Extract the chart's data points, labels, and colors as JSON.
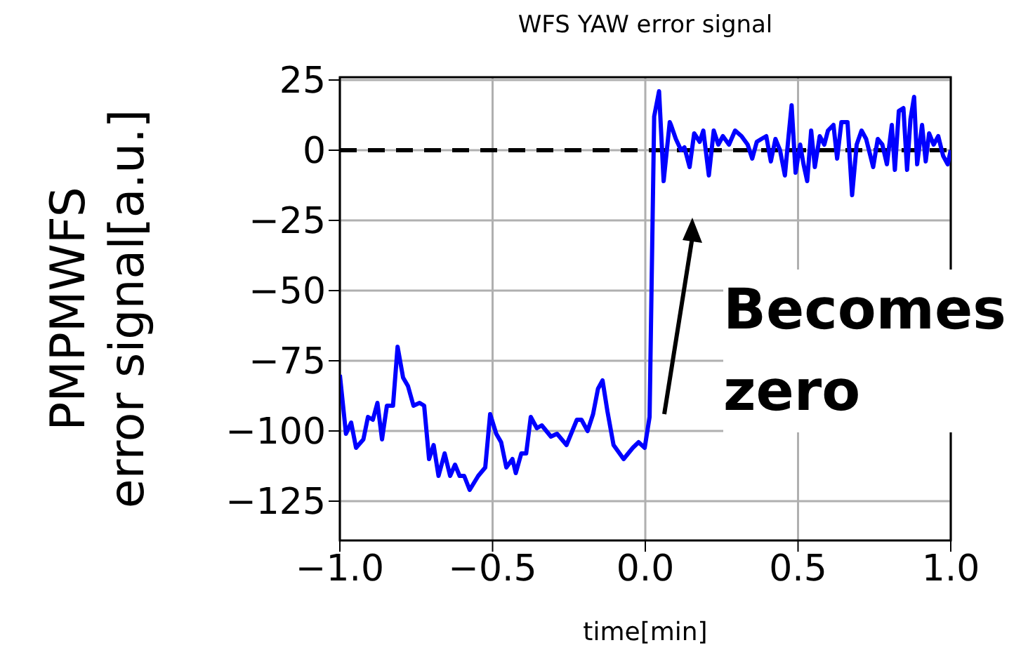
{
  "chart_data": {
    "type": "line",
    "title": "WFS YAW error signal",
    "xlabel": "time[min]",
    "ylabel": "PMPMWFS\nerror signal[a.u.]",
    "x": [
      -1.0,
      -0.98,
      -0.963,
      -0.947,
      -0.923,
      -0.908,
      -0.892,
      -0.877,
      -0.862,
      -0.846,
      -0.826,
      -0.811,
      -0.793,
      -0.777,
      -0.759,
      -0.739,
      -0.724,
      -0.708,
      -0.693,
      -0.677,
      -0.657,
      -0.639,
      -0.623,
      -0.608,
      -0.593,
      -0.575,
      -0.547,
      -0.524,
      -0.508,
      -0.488,
      -0.472,
      -0.455,
      -0.435,
      -0.424,
      -0.406,
      -0.39,
      -0.375,
      -0.355,
      -0.339,
      -0.309,
      -0.289,
      -0.258,
      -0.224,
      -0.209,
      -0.189,
      -0.171,
      -0.155,
      -0.14,
      -0.124,
      -0.104,
      -0.071,
      -0.041,
      -0.022,
      -0.002,
      0.014,
      0.029,
      0.045,
      0.06,
      0.08,
      0.084,
      0.1,
      0.117,
      0.128,
      0.145,
      0.16,
      0.178,
      0.19,
      0.208,
      0.224,
      0.239,
      0.254,
      0.274,
      0.294,
      0.315,
      0.335,
      0.35,
      0.365,
      0.38,
      0.396,
      0.411,
      0.426,
      0.441,
      0.457,
      0.469,
      0.479,
      0.492,
      0.507,
      0.518,
      0.53,
      0.543,
      0.555,
      0.571,
      0.586,
      0.598,
      0.616,
      0.628,
      0.642,
      0.662,
      0.677,
      0.692,
      0.708,
      0.723,
      0.746,
      0.761,
      0.776,
      0.791,
      0.807,
      0.817,
      0.83,
      0.845,
      0.857,
      0.868,
      0.88,
      0.89,
      0.906,
      0.918,
      0.929,
      0.944,
      0.959,
      0.975,
      0.99,
      1.0
    ],
    "series": [
      {
        "color": "#0000ff",
        "values": [
          -80,
          -101,
          -97,
          -106,
          -103,
          -95,
          -96,
          -90,
          -103,
          -91,
          -91,
          -70,
          -81,
          -84,
          -91,
          -90,
          -91,
          -110,
          -105,
          -116,
          -108,
          -116,
          -112,
          -116,
          -116,
          -121,
          -116,
          -113,
          -94,
          -101,
          -104,
          -113,
          -110,
          -115,
          -108,
          -108,
          -95,
          -99,
          -98,
          -102,
          -101,
          -105,
          -96,
          -96,
          -100,
          -94,
          -85,
          -82,
          -93,
          -105,
          -110,
          -106,
          -104,
          -106,
          -95,
          12,
          21,
          -11,
          10,
          9,
          4,
          0,
          1,
          -6,
          6,
          3,
          7,
          -9,
          7,
          2,
          5,
          2,
          7,
          5,
          2,
          -3,
          3,
          4,
          5,
          -4,
          4,
          0,
          -9,
          5,
          16,
          -8,
          2,
          -5,
          -11,
          7,
          -6,
          5,
          2,
          7,
          9,
          -3,
          10,
          10,
          -16,
          2,
          7,
          4,
          -6,
          4,
          2,
          -5,
          9,
          -7,
          14,
          15,
          -7,
          11,
          19,
          -5,
          9,
          -4,
          6,
          2,
          5,
          -2,
          -5,
          0
        ]
      }
    ],
    "xlim": [
      -1.0,
      1.0
    ],
    "xticks": [
      {
        "value": -1,
        "label": "−1.0"
      },
      -0.5,
      {
        "value": 0,
        "label": "0.0"
      },
      0.5,
      {
        "value": 1,
        "label": "1.0"
      }
    ],
    "ylim": [
      -139,
      26
    ],
    "yticks": [
      25,
      0,
      -25,
      -50,
      -75,
      -100,
      -125
    ],
    "grid": true,
    "ref_lines": [
      {
        "axis": "y",
        "value": 0,
        "color": "#000000",
        "line_style": "dashed"
      }
    ],
    "annotations": [
      "Becomes zero"
    ]
  }
}
